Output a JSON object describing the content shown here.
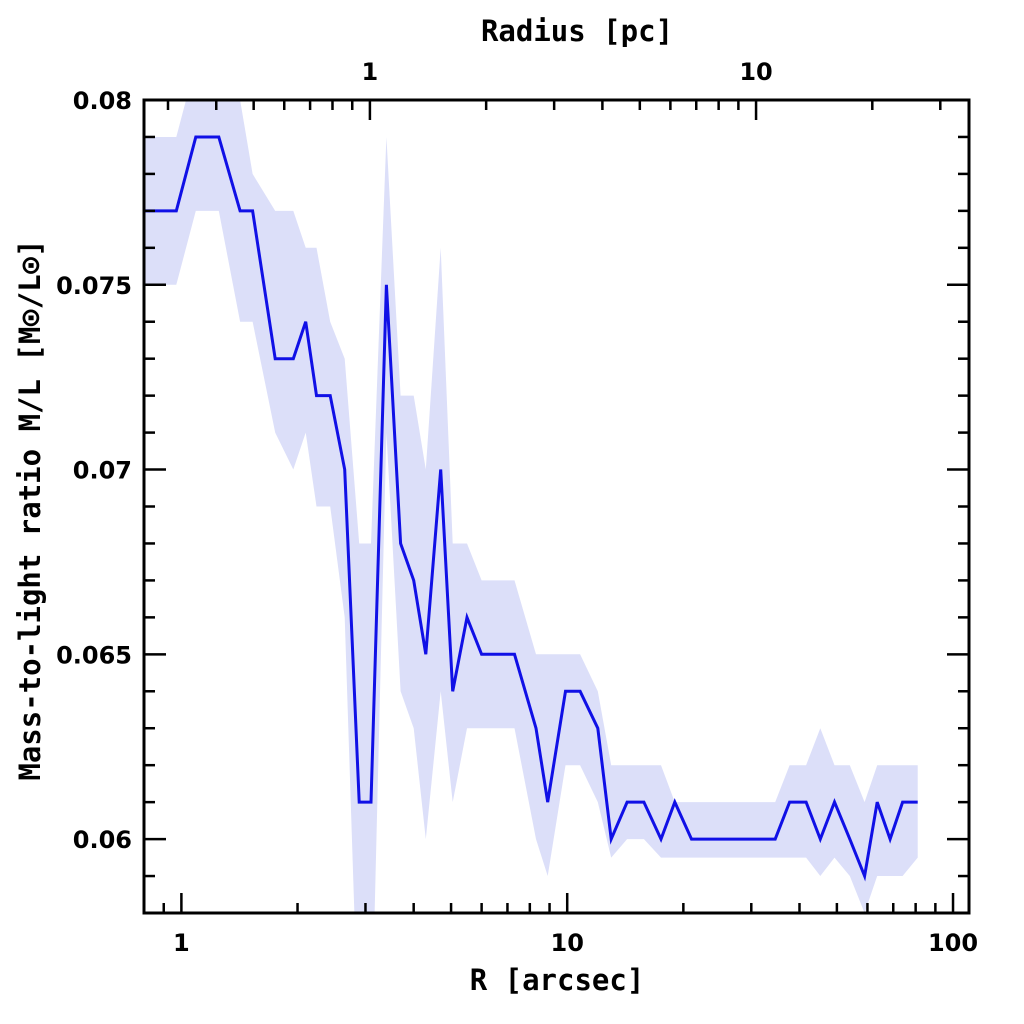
{
  "chart_data": {
    "type": "line",
    "xlabel": "R [arcsec]",
    "ylabel": "Mass-to-light ratio M/L [M⊙/L⊙]",
    "top_xlabel": "Radius [pc]",
    "xscale": "log",
    "xlim": [
      0.8,
      110
    ],
    "ylim": [
      0.058,
      0.08
    ],
    "top_xlim_pc": [
      0.26,
      35.6
    ],
    "x_ticks": [
      "1",
      "10",
      "100"
    ],
    "top_ticks": [
      "1",
      "10"
    ],
    "y_ticks": [
      "0.06",
      "0.065",
      "0.07",
      "0.075",
      "0.08"
    ],
    "grid": false,
    "colors": {
      "line": "#1010e6",
      "band": "#dcdff9"
    },
    "series": [
      {
        "x": [
          0.8,
          0.97,
          1.09,
          1.25,
          1.42,
          1.53,
          1.75,
          1.95,
          2.1,
          2.24,
          2.43,
          2.65,
          2.89,
          3.1,
          3.4,
          3.7,
          4.0,
          4.3,
          4.7,
          5.05,
          5.5,
          6.0,
          6.6,
          7.3,
          8.3,
          8.9,
          9.9,
          10.8,
          12.0,
          13.0,
          14.3,
          15.8,
          17.5,
          19.0,
          21.0,
          34.6,
          37.7,
          41.6,
          45.3,
          49.3,
          54.0,
          59.0,
          63.6,
          68.7,
          74.0,
          81.0
        ],
        "y": [
          0.077,
          0.077,
          0.079,
          0.079,
          0.077,
          0.077,
          0.073,
          0.073,
          0.074,
          0.072,
          0.072,
          0.07,
          0.061,
          0.061,
          0.075,
          0.068,
          0.067,
          0.065,
          0.07,
          0.064,
          0.066,
          0.065,
          0.065,
          0.065,
          0.063,
          0.061,
          0.064,
          0.064,
          0.063,
          0.06,
          0.061,
          0.061,
          0.06,
          0.061,
          0.06,
          0.06,
          0.061,
          0.061,
          0.06,
          0.061,
          0.06,
          0.059,
          0.061,
          0.06,
          0.061,
          0.061
        ],
        "upper": [
          0.079,
          0.079,
          0.081,
          0.081,
          0.08,
          0.078,
          0.077,
          0.077,
          0.076,
          0.076,
          0.074,
          0.073,
          0.068,
          0.068,
          0.079,
          0.072,
          0.072,
          0.07,
          0.076,
          0.068,
          0.068,
          0.067,
          0.067,
          0.067,
          0.065,
          0.065,
          0.065,
          0.065,
          0.064,
          0.062,
          0.062,
          0.062,
          0.062,
          0.061,
          0.061,
          0.061,
          0.062,
          0.062,
          0.063,
          0.062,
          0.062,
          0.061,
          0.062,
          0.062,
          0.062,
          0.062
        ],
        "lower": [
          0.075,
          0.075,
          0.077,
          0.077,
          0.074,
          0.074,
          0.071,
          0.07,
          0.071,
          0.069,
          0.069,
          0.066,
          0.054,
          0.054,
          0.071,
          0.064,
          0.063,
          0.06,
          0.064,
          0.061,
          0.063,
          0.063,
          0.063,
          0.063,
          0.06,
          0.059,
          0.062,
          0.062,
          0.061,
          0.0595,
          0.06,
          0.06,
          0.0595,
          0.0595,
          0.0595,
          0.0595,
          0.0595,
          0.0595,
          0.059,
          0.0595,
          0.059,
          0.058,
          0.059,
          0.059,
          0.059,
          0.0595
        ]
      }
    ]
  }
}
